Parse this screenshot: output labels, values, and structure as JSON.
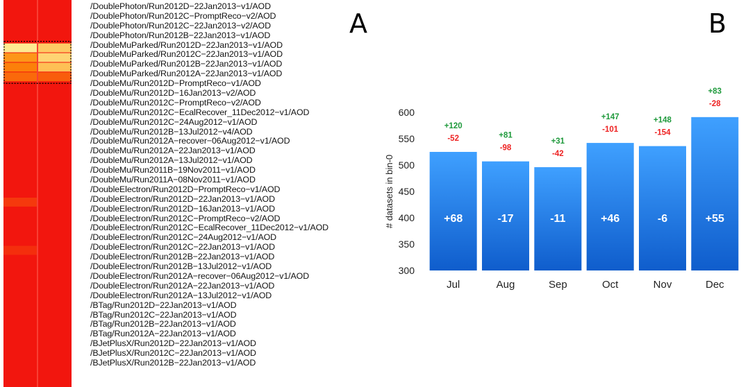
{
  "panels": {
    "a": "A",
    "b": "B"
  },
  "chart_data": [
    {
      "type": "heatmap",
      "rows": [
        "/DoublePhoton/Run2012D−22Jan2013−v1/AOD",
        "/DoublePhoton/Run2012C−PromptReco−v2/AOD",
        "/DoublePhoton/Run2012C−22Jan2013−v2/AOD",
        "/DoublePhoton/Run2012B−22Jan2013−v1/AOD",
        "/DoubleMuParked/Run2012D−22Jan2013−v1/AOD",
        "/DoubleMuParked/Run2012C−22Jan2013−v1/AOD",
        "/DoubleMuParked/Run2012B−22Jan2013−v1/AOD",
        "/DoubleMuParked/Run2012A−22Jan2013−v1/AOD",
        "/DoubleMu/Run2012D−PromptReco−v1/AOD",
        "/DoubleMu/Run2012D−16Jan2013−v2/AOD",
        "/DoubleMu/Run2012C−PromptReco−v2/AOD",
        "/DoubleMu/Run2012C−EcalRecover_11Dec2012−v1/AOD",
        "/DoubleMu/Run2012C−24Aug2012−v1/AOD",
        "/DoubleMu/Run2012B−13Jul2012−v4/AOD",
        "/DoubleMu/Run2012A−recover−06Aug2012−v1/AOD",
        "/DoubleMu/Run2012A−22Jan2013−v1/AOD",
        "/DoubleMu/Run2012A−13Jul2012−v1/AOD",
        "/DoubleMu/Run2011B−19Nov2011−v1/AOD",
        "/DoubleMu/Run2011A−08Nov2011−v1/AOD",
        "/DoubleElectron/Run2012D−PromptReco−v1/AOD",
        "/DoubleElectron/Run2012D−22Jan2013−v1/AOD",
        "/DoubleElectron/Run2012D−16Jan2013−v1/AOD",
        "/DoubleElectron/Run2012C−PromptReco−v2/AOD",
        "/DoubleElectron/Run2012C−EcalRecover_11Dec2012−v1/AOD",
        "/DoubleElectron/Run2012C−24Aug2012−v1/AOD",
        "/DoubleElectron/Run2012C−22Jan2013−v1/AOD",
        "/DoubleElectron/Run2012B−22Jan2013−v1/AOD",
        "/DoubleElectron/Run2012B−13Jul2012−v1/AOD",
        "/DoubleElectron/Run2012A−recover−06Aug2012−v1/AOD",
        "/DoubleElectron/Run2012A−22Jan2013−v1/AOD",
        "/DoubleElectron/Run2012A−13Jul2012−v1/AOD",
        "/BTag/Run2012D−22Jan2013−v1/AOD",
        "/BTag/Run2012C−22Jan2013−v1/AOD",
        "/BTag/Run2012B−22Jan2013−v1/AOD",
        "/BTag/Run2012A−22Jan2013−v1/AOD",
        "/BJetPlusX/Run2012D−22Jan2013−v1/AOD",
        "/BJetPlusX/Run2012C−22Jan2013−v1/AOD",
        "/BJetPlusX/Run2012B−22Jan2013−v1/AOD"
      ],
      "columns": 2,
      "cells": [
        [
          0,
          0
        ],
        [
          0,
          0
        ],
        [
          0,
          0
        ],
        [
          0,
          0
        ],
        [
          0.95,
          0.8
        ],
        [
          0.55,
          0.85
        ],
        [
          0.45,
          0.75
        ],
        [
          0.35,
          0.3
        ],
        [
          0,
          0
        ],
        [
          0,
          0
        ],
        [
          0,
          0
        ],
        [
          0,
          0
        ],
        [
          0,
          0
        ],
        [
          0,
          0
        ],
        [
          0,
          0
        ],
        [
          0,
          0
        ],
        [
          0,
          0
        ],
        [
          0,
          0
        ],
        [
          0,
          0
        ],
        [
          0,
          0
        ],
        [
          0.15,
          0
        ],
        [
          0,
          0
        ],
        [
          0,
          0
        ],
        [
          0,
          0
        ],
        [
          0,
          0
        ],
        [
          0.1,
          0
        ],
        [
          0,
          0
        ],
        [
          0,
          0
        ],
        [
          0,
          0
        ],
        [
          0,
          0
        ],
        [
          0,
          0
        ],
        [
          0,
          0
        ],
        [
          0,
          0
        ],
        [
          0,
          0
        ],
        [
          0,
          0
        ],
        [
          0,
          0
        ],
        [
          0,
          0
        ],
        [
          0,
          0
        ]
      ],
      "highlight_rows": [
        4,
        7
      ],
      "colors": {
        "low": "#f2160e",
        "mid": "#fd8c0a",
        "high": "#fef3a0",
        "grid": "#ff6a5a",
        "highlight_border": "#000000"
      }
    },
    {
      "type": "bar",
      "categories": [
        "Jul",
        "Aug",
        "Sep",
        "Oct",
        "Nov",
        "Dec"
      ],
      "values": [
        525,
        507,
        496,
        542,
        536,
        591
      ],
      "net_labels": [
        "+68",
        "-17",
        "-11",
        "+46",
        "-6",
        "+55"
      ],
      "added_labels": [
        "+120",
        "+81",
        "+31",
        "+147",
        "+148",
        "+83"
      ],
      "removed_labels": [
        "-52",
        "-98",
        "-42",
        "-101",
        "-154",
        "-28"
      ],
      "ylabel": "# datasets in bin-0",
      "ylim": [
        300,
        600
      ],
      "yticks": [
        300,
        350,
        400,
        450,
        500,
        550,
        600
      ],
      "colors": {
        "bar_top": "#3fa0ff",
        "bar_bottom": "#0f5dcc",
        "added": "#1f9a3c",
        "removed": "#ee2222",
        "net": "#ffffff"
      }
    }
  ]
}
